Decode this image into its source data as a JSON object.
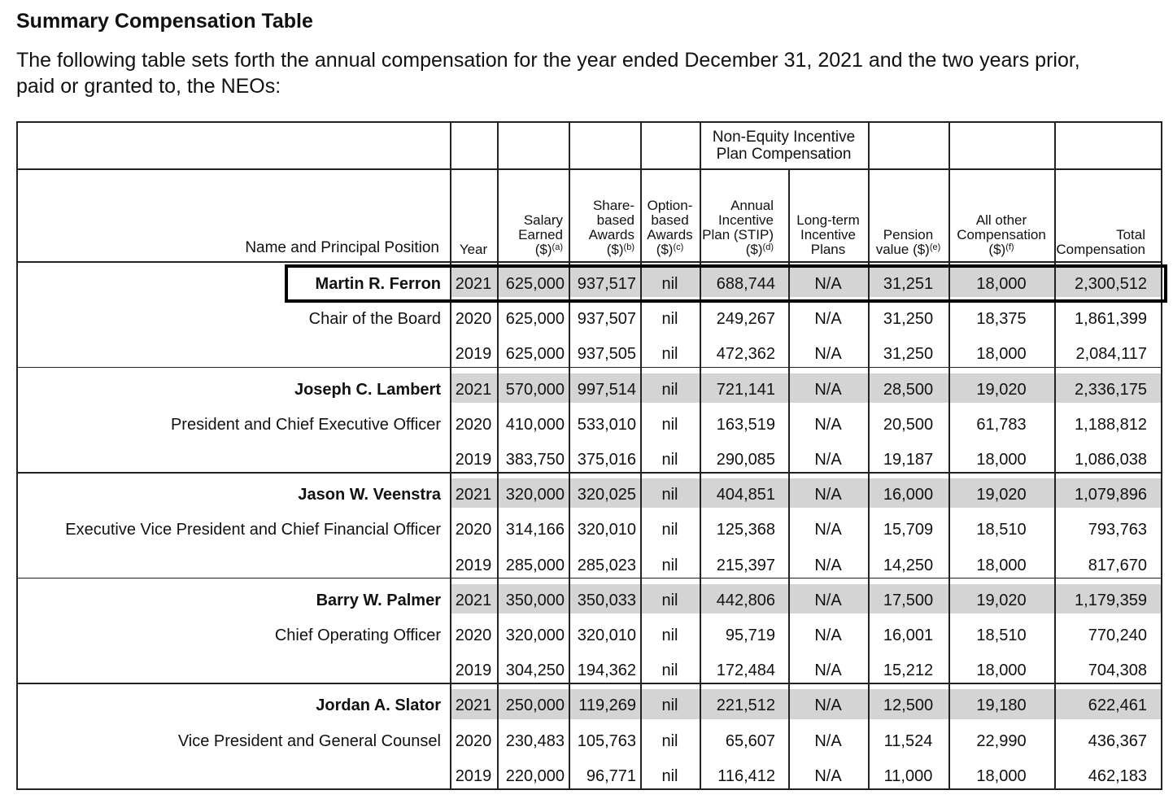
{
  "header": {
    "title": "Summary Compensation Table",
    "intro_lines": [
      "The following table sets forth the annual compensation for the year ended December 31, 2021 and the two years prior,",
      "paid or granted to, the NEOs:"
    ]
  },
  "table": {
    "group_header": {
      "lines": [
        "Non-Equity Incentive",
        "Plan Compensation"
      ]
    },
    "columns": [
      {
        "lines": [
          "Name and Principal Position"
        ]
      },
      {
        "lines": [
          "Year"
        ]
      },
      {
        "lines": [
          "Salary",
          "Earned",
          "($)"
        ],
        "note": "(a)"
      },
      {
        "lines": [
          "Share-",
          "based",
          "Awards",
          "($)"
        ],
        "note": "(b)"
      },
      {
        "lines": [
          "Option-",
          "based",
          "Awards",
          "($)"
        ],
        "note": "(c)"
      },
      {
        "lines": [
          "Annual",
          "Incentive",
          "Plan (STIP)",
          "($)"
        ],
        "note": "(d)"
      },
      {
        "lines": [
          "Long-term",
          "Incentive",
          "Plans"
        ]
      },
      {
        "lines": [
          "Pension",
          "value ($)"
        ],
        "note": "(e)"
      },
      {
        "lines": [
          "All other",
          "Compensation",
          "($)"
        ],
        "note": "(f)"
      },
      {
        "lines": [
          "Total",
          "Compensation"
        ]
      }
    ],
    "executives": [
      {
        "name": "Martin R. Ferron",
        "position": "Chair of the Board",
        "rows": [
          [
            "2021",
            "625,000",
            "937,517",
            "nil",
            "688,744",
            "N/A",
            "31,251",
            "18,000",
            "2,300,512"
          ],
          [
            "2020",
            "625,000",
            "937,507",
            "nil",
            "249,267",
            "N/A",
            "31,250",
            "18,375",
            "1,861,399"
          ],
          [
            "2019",
            "625,000",
            "937,505",
            "nil",
            "472,362",
            "N/A",
            "31,250",
            "18,000",
            "2,084,117"
          ]
        ]
      },
      {
        "name": "Joseph C. Lambert",
        "position": "President and Chief Executive Officer",
        "rows": [
          [
            "2021",
            "570,000",
            "997,514",
            "nil",
            "721,141",
            "N/A",
            "28,500",
            "19,020",
            "2,336,175"
          ],
          [
            "2020",
            "410,000",
            "533,010",
            "nil",
            "163,519",
            "N/A",
            "20,500",
            "61,783",
            "1,188,812"
          ],
          [
            "2019",
            "383,750",
            "375,016",
            "nil",
            "290,085",
            "N/A",
            "19,187",
            "18,000",
            "1,086,038"
          ]
        ]
      },
      {
        "name": "Jason W. Veenstra",
        "position": "Executive Vice President and Chief Financial Officer",
        "rows": [
          [
            "2021",
            "320,000",
            "320,025",
            "nil",
            "404,851",
            "N/A",
            "16,000",
            "19,020",
            "1,079,896"
          ],
          [
            "2020",
            "314,166",
            "320,010",
            "nil",
            "125,368",
            "N/A",
            "15,709",
            "18,510",
            "793,763"
          ],
          [
            "2019",
            "285,000",
            "285,023",
            "nil",
            "215,397",
            "N/A",
            "14,250",
            "18,000",
            "817,670"
          ]
        ]
      },
      {
        "name": "Barry W. Palmer",
        "position": "Chief Operating Officer",
        "rows": [
          [
            "2021",
            "350,000",
            "350,033",
            "nil",
            "442,806",
            "N/A",
            "17,500",
            "19,020",
            "1,179,359"
          ],
          [
            "2020",
            "320,000",
            "320,010",
            "nil",
            "95,719",
            "N/A",
            "16,001",
            "18,510",
            "770,240"
          ],
          [
            "2019",
            "304,250",
            "194,362",
            "nil",
            "172,484",
            "N/A",
            "15,212",
            "18,000",
            "704,308"
          ]
        ]
      },
      {
        "name": "Jordan A. Slator",
        "position": "Vice President and General Counsel",
        "rows": [
          [
            "2021",
            "250,000",
            "119,269",
            "nil",
            "221,512",
            "N/A",
            "12,500",
            "19,180",
            "622,461"
          ],
          [
            "2020",
            "230,483",
            "105,763",
            "nil",
            "65,607",
            "N/A",
            "11,524",
            "22,990",
            "436,367"
          ],
          [
            "2019",
            "220,000",
            "96,771",
            "nil",
            "116,412",
            "N/A",
            "11,000",
            "18,000",
            "462,183"
          ]
        ]
      }
    ]
  }
}
